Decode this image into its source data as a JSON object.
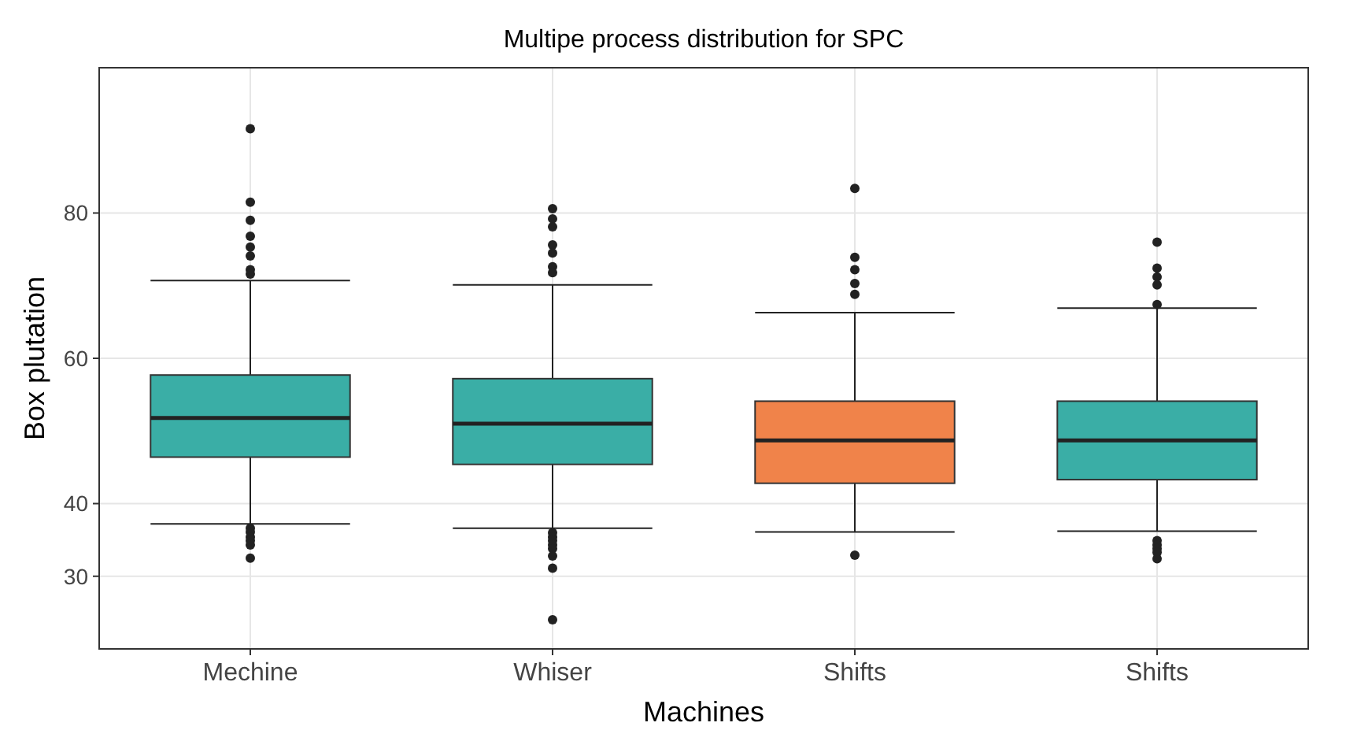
{
  "chart_data": {
    "type": "box",
    "title": "Multipe process distribution for SPC",
    "xlabel": "Machines",
    "ylabel": "Box plutation",
    "categories": [
      "Mechine",
      "Whiser",
      "Shifts",
      "Shifts"
    ],
    "colors": [
      "#3aaea6",
      "#3aaea6",
      "#f0834a",
      "#3aaea6"
    ],
    "boxes": [
      {
        "low": 37.2,
        "q1": 46.4,
        "median": 51.8,
        "q3": 57.7,
        "high": 70.7,
        "outliers": [
          91.6,
          81.5,
          79,
          76.8,
          75.3,
          74.1,
          72.2,
          71.6,
          36.6,
          36.1,
          35.4,
          34.9,
          34.3,
          32.5
        ]
      },
      {
        "low": 36.6,
        "q1": 45.4,
        "median": 51,
        "q3": 57.2,
        "high": 70.1,
        "outliers": [
          80.6,
          79.2,
          78.1,
          75.6,
          74.5,
          72.6,
          71.8,
          36,
          35.4,
          34.9,
          34.3,
          33.8,
          32.8,
          31.1,
          24
        ]
      },
      {
        "low": 36.1,
        "q1": 42.8,
        "median": 48.7,
        "q3": 54.1,
        "high": 66.3,
        "outliers": [
          83.4,
          73.9,
          72.2,
          70.3,
          68.8,
          32.9
        ]
      },
      {
        "low": 36.2,
        "q1": 43.3,
        "median": 48.7,
        "q3": 54.1,
        "high": 66.9,
        "outliers": [
          76,
          72.4,
          71.2,
          70.1,
          67.4,
          34.9,
          34.3,
          33.8,
          33.3,
          32.4
        ]
      }
    ],
    "ylim": [
      20,
      100
    ],
    "yticks": [
      30,
      40,
      60,
      80
    ],
    "grid": true
  }
}
